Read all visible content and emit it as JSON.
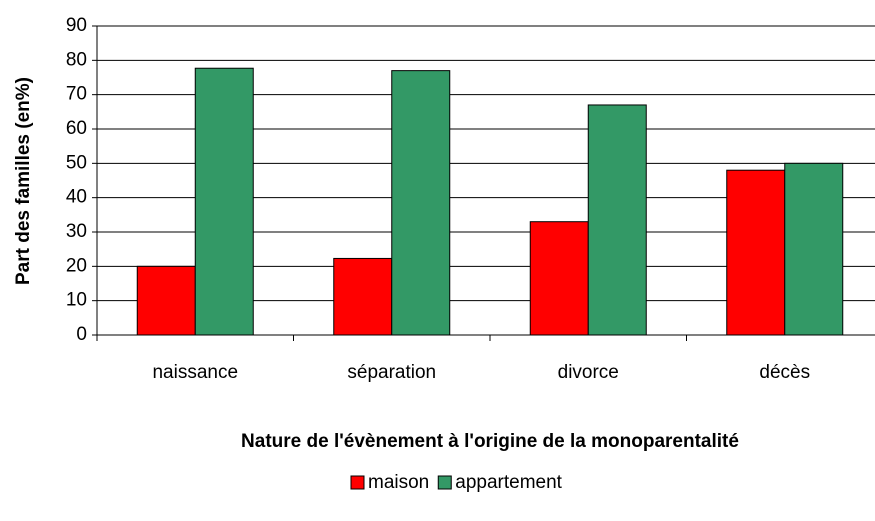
{
  "chart_data": {
    "type": "bar",
    "categories": [
      "naissance",
      "séparation",
      "divorce",
      "décès"
    ],
    "series": [
      {
        "name": "maison",
        "color": "#ff0000",
        "values": [
          20,
          22.3,
          33,
          48
        ]
      },
      {
        "name": "appartement",
        "color": "#339966",
        "values": [
          77.7,
          77,
          67,
          50
        ]
      }
    ],
    "ylabel": "Part des familles (en%)",
    "xlabel": "Nature de l'évènement à l'origine de la monoparentalité",
    "ylim": [
      0,
      90
    ],
    "yticks": [
      0,
      10,
      20,
      30,
      40,
      50,
      60,
      70,
      80,
      90
    ],
    "grid": true,
    "legend": "bottom"
  }
}
